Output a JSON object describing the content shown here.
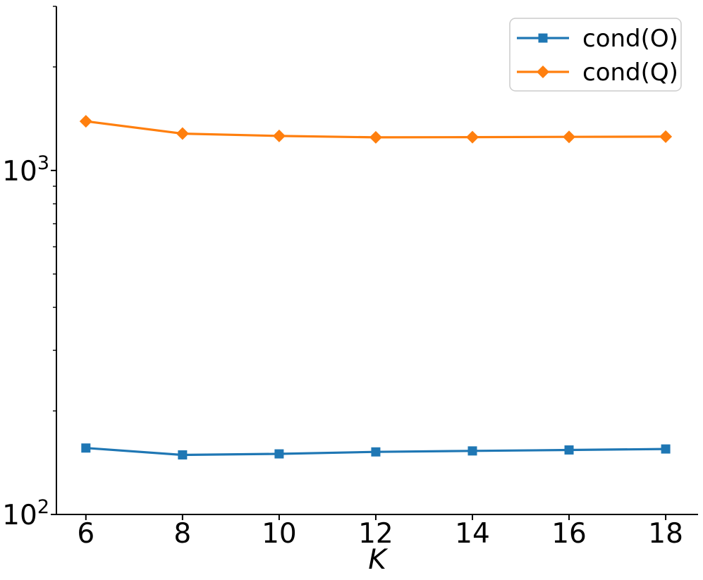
{
  "figure": {
    "background": "#ffffff"
  },
  "chart_data": {
    "type": "line",
    "title": "",
    "xlabel": "K",
    "ylabel": "",
    "x": [
      6,
      8,
      10,
      12,
      14,
      16,
      18
    ],
    "series": [
      {
        "name": "cond(O)",
        "color": "#1f77b4",
        "marker": "square",
        "values": [
          156,
          149,
          150,
          152,
          153,
          154,
          155
        ]
      },
      {
        "name": "cond(Q)",
        "color": "#ff7f0e",
        "marker": "diamond",
        "values": [
          1390,
          1280,
          1260,
          1248,
          1250,
          1252,
          1254
        ]
      }
    ],
    "x_ticks": [
      {
        "value": 6,
        "label": "6"
      },
      {
        "value": 8,
        "label": "8"
      },
      {
        "value": 10,
        "label": "10"
      },
      {
        "value": 12,
        "label": "12"
      },
      {
        "value": 14,
        "label": "14"
      },
      {
        "value": 16,
        "label": "16"
      },
      {
        "value": 18,
        "label": "18"
      }
    ],
    "y_axis": {
      "scale": "log",
      "major_ticks": [
        {
          "value": 100,
          "base": "10",
          "exp": "2"
        },
        {
          "value": 1000,
          "base": "10",
          "exp": "3"
        }
      ],
      "minor_ticks": [
        200,
        300,
        400,
        500,
        600,
        700,
        800,
        900,
        2000,
        3000
      ]
    },
    "xlim": [
      5.39,
      18.67
    ],
    "ylim": [
      100,
      3000
    ],
    "grid": false,
    "legend": {
      "position": "upper right",
      "entries": [
        "cond(O)",
        "cond(Q)"
      ]
    }
  },
  "colors": {
    "axis": "#000000",
    "legend_border": "#cccccc",
    "legend_background": "#ffffff",
    "series_blue": "#1f77b4",
    "series_orange": "#ff7f0e"
  }
}
